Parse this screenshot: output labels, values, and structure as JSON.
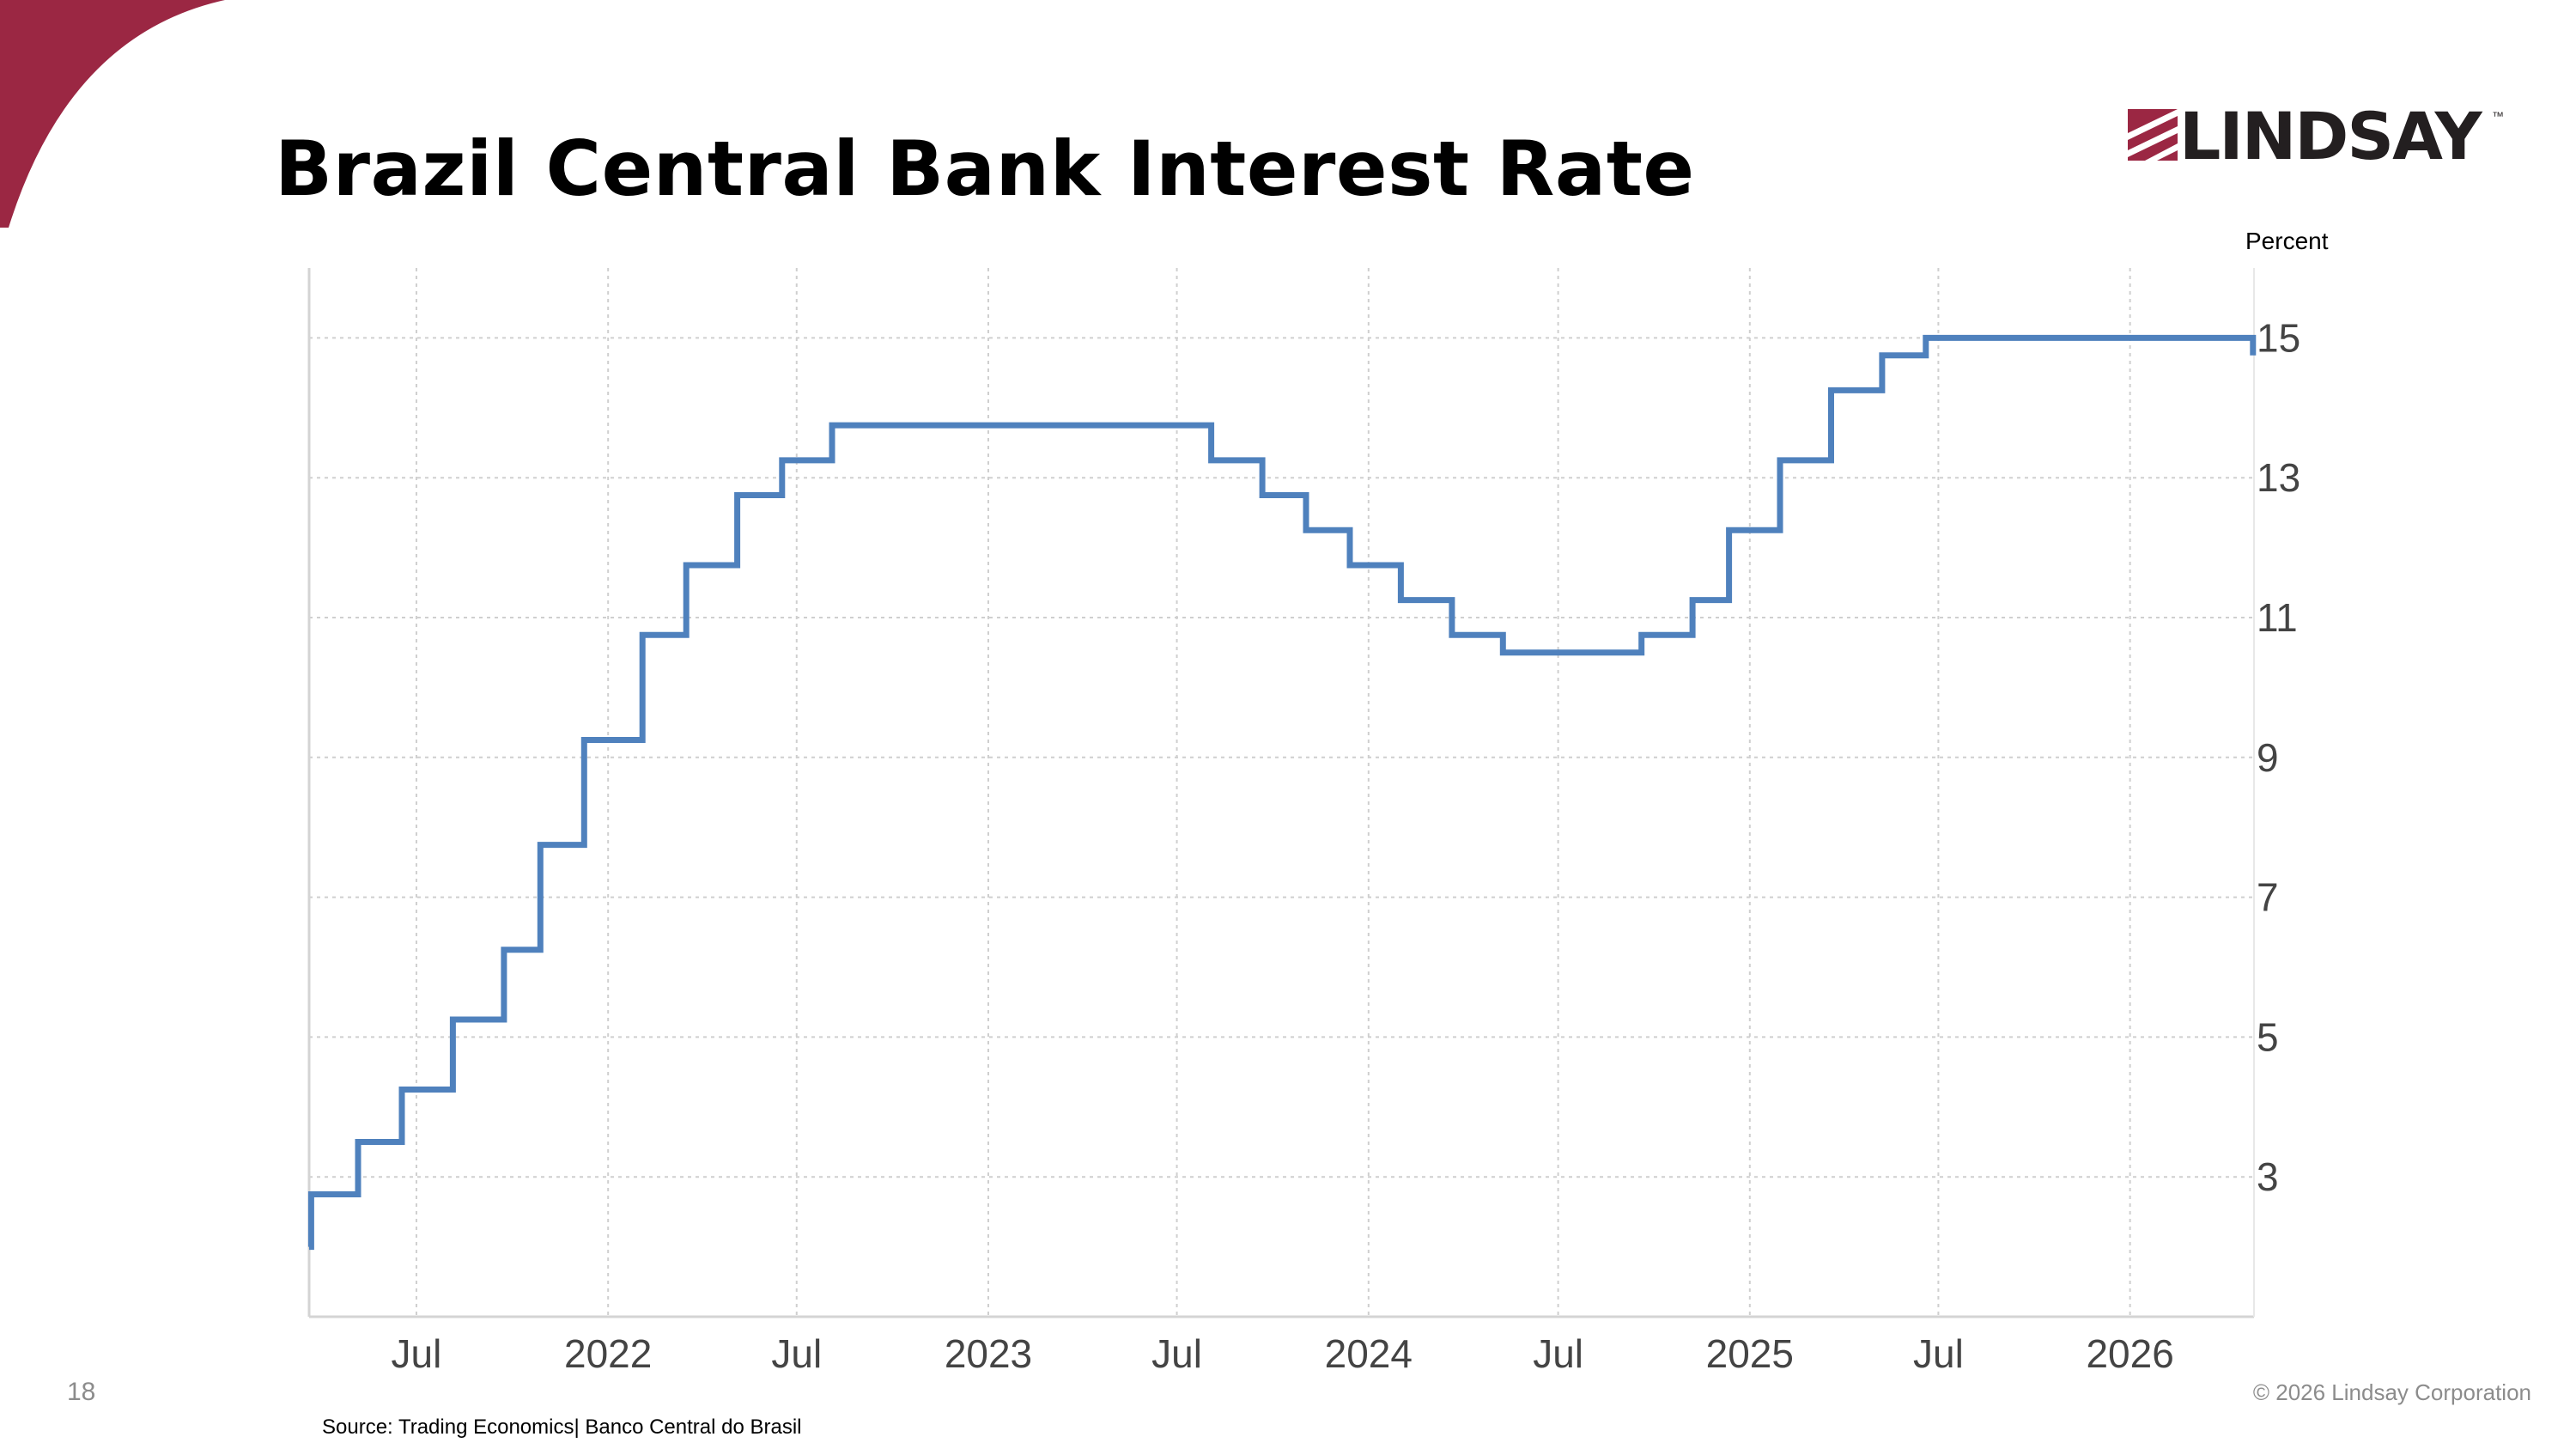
{
  "slide": {
    "title": "Brazil Central Bank Interest Rate",
    "page_number": "18",
    "copyright": "© 2026 Lindsay Corporation",
    "source": "Source: Trading Economics| Banco Central do Brasil",
    "accent_color": "#9b2743"
  },
  "logo": {
    "text": "LINDSAY",
    "tm": "™",
    "color": "#9b2743"
  },
  "chart_data": {
    "type": "line",
    "step": true,
    "ylabel": "Percent",
    "y_axis_position": "right",
    "ylim": [
      1,
      16
    ],
    "y_ticks": [
      3,
      5,
      7,
      9,
      11,
      13,
      15
    ],
    "xlim": [
      "2021-03-20",
      "2026-04-30"
    ],
    "x_ticks": [
      {
        "date": "2021-07-01",
        "label": "Jul"
      },
      {
        "date": "2022-01-01",
        "label": "2022"
      },
      {
        "date": "2022-07-01",
        "label": "Jul"
      },
      {
        "date": "2023-01-01",
        "label": "2023"
      },
      {
        "date": "2023-07-01",
        "label": "Jul"
      },
      {
        "date": "2024-01-01",
        "label": "2024"
      },
      {
        "date": "2024-07-01",
        "label": "Jul"
      },
      {
        "date": "2025-01-01",
        "label": "2025"
      },
      {
        "date": "2025-07-01",
        "label": "Jul"
      },
      {
        "date": "2026-01-01",
        "label": "2026"
      }
    ],
    "grid": true,
    "line_color": "#4f81bd",
    "series": [
      {
        "name": "",
        "x": [
          "2021-03-20",
          "2021-03-22",
          "2021-05-06",
          "2021-06-17",
          "2021-08-05",
          "2021-09-23",
          "2021-10-28",
          "2021-12-09",
          "2022-02-03",
          "2022-03-17",
          "2022-05-05",
          "2022-06-17",
          "2022-08-04",
          "2023-08-03",
          "2023-09-21",
          "2023-11-02",
          "2023-12-14",
          "2024-02-01",
          "2024-03-21",
          "2024-05-09",
          "2024-09-19",
          "2024-11-07",
          "2024-12-12",
          "2025-01-30",
          "2025-03-20",
          "2025-05-08",
          "2025-06-19",
          "2026-04-29"
        ],
        "values": [
          2.0,
          2.75,
          3.5,
          4.25,
          5.25,
          6.25,
          7.75,
          9.25,
          10.75,
          11.75,
          12.75,
          13.25,
          13.75,
          13.25,
          12.75,
          12.25,
          11.75,
          11.25,
          10.75,
          10.5,
          10.75,
          11.25,
          12.25,
          13.25,
          14.25,
          14.75,
          15.0,
          14.75
        ]
      }
    ]
  }
}
